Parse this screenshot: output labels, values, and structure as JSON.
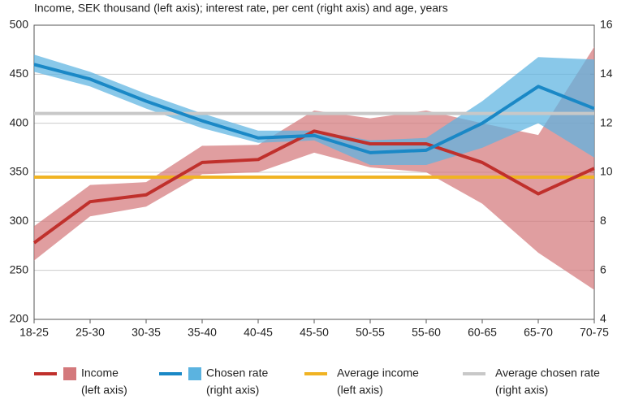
{
  "chart_data": {
    "type": "line",
    "title": "Income, SEK thousand (left axis); interest rate, per cent (right axis) and age, years",
    "categories": [
      "18-25",
      "25-30",
      "30-35",
      "35-40",
      "40-45",
      "45-50",
      "50-55",
      "55-60",
      "60-65",
      "65-70",
      "70-75"
    ],
    "ylim": [
      200,
      500
    ],
    "yticks": [
      200,
      250,
      300,
      350,
      400,
      450,
      500
    ],
    "y2lim": [
      4,
      16
    ],
    "y2ticks": [
      4,
      6,
      8,
      10,
      12,
      14,
      16
    ],
    "grid": true,
    "series": [
      {
        "name": "Income",
        "note": "(left axis)",
        "color": "#c0302c",
        "band_color": "#d4797c",
        "values": [
          278,
          320,
          327,
          360,
          363,
          392,
          379,
          379,
          360,
          328,
          354
        ],
        "lower": [
          260,
          305,
          315,
          348,
          350,
          370,
          355,
          350,
          318,
          268,
          230
        ],
        "upper": [
          295,
          337,
          340,
          377,
          378,
          413,
          405,
          413,
          400,
          388,
          478
        ]
      },
      {
        "name": "Chosen rate",
        "note": "(right axis)",
        "axis": "y2",
        "color": "#1a88c6",
        "band_color": "#5bb3e0",
        "values": [
          14.4,
          13.8,
          12.9,
          12.1,
          11.4,
          11.5,
          10.8,
          10.9,
          12.0,
          13.5,
          12.6
        ],
        "lower": [
          14.1,
          13.5,
          12.6,
          11.8,
          11.2,
          11.3,
          10.3,
          10.3,
          11.0,
          12.0,
          10.6
        ],
        "upper": [
          14.8,
          14.1,
          13.2,
          12.4,
          11.7,
          11.7,
          11.3,
          11.4,
          12.9,
          14.7,
          14.6
        ]
      },
      {
        "name": "Average income",
        "note": "(left axis)",
        "color": "#f0b323",
        "value": 345
      },
      {
        "name": "Average chosen rate",
        "note": "(right axis)",
        "axis": "y2",
        "color": "#c8c8c8",
        "value": 12.4
      }
    ]
  }
}
